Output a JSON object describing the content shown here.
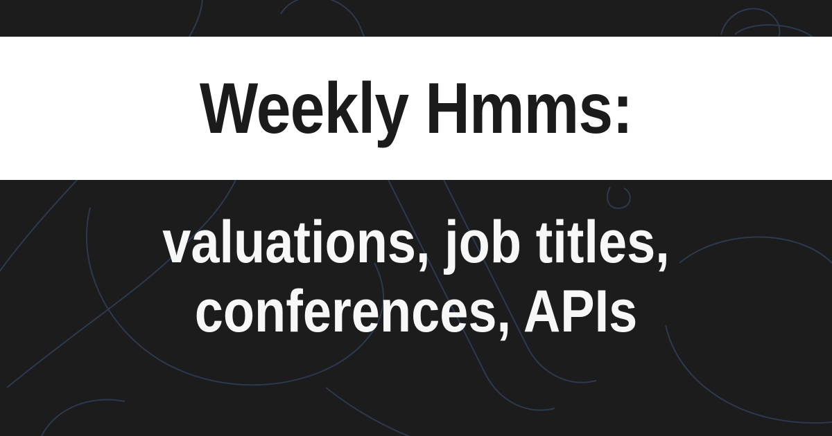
{
  "title": "Weekly Hmms:",
  "subtitle_lines": [
    "valuations, job titles,",
    "conferences, APIs"
  ],
  "colors": {
    "background": "#1c1c1d",
    "band": "#ffffff",
    "title_text": "#1b1b1b",
    "subtitle_text": "#f7f7f7",
    "pattern_stroke": "#2b3a4f"
  }
}
